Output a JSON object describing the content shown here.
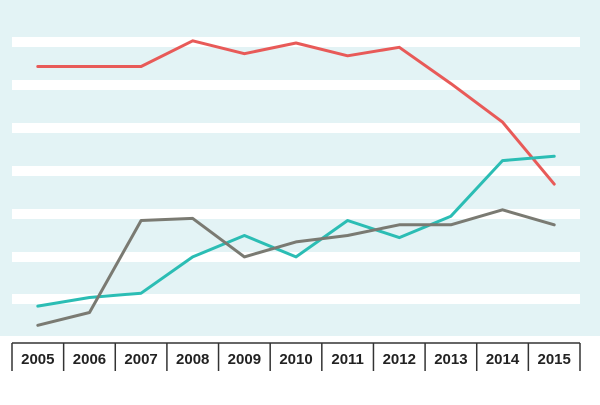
{
  "chart_data": {
    "type": "line",
    "title": "",
    "xlabel": "",
    "ylabel": "",
    "x": [
      "2005",
      "2006",
      "2007",
      "2008",
      "2009",
      "2010",
      "2011",
      "2012",
      "2013",
      "2014",
      "2015"
    ],
    "ylim": [
      0,
      7.2
    ],
    "grid": true,
    "legend": "none",
    "series": [
      {
        "color": "#e85a58",
        "values": [
          6.3,
          6.3,
          6.3,
          6.9,
          6.6,
          6.85,
          6.55,
          6.75,
          5.9,
          5.0,
          3.55
        ]
      },
      {
        "color": "#2bbdb4",
        "values": [
          0.7,
          0.9,
          1.0,
          1.85,
          2.35,
          1.85,
          2.7,
          2.3,
          2.8,
          4.1,
          4.2
        ]
      },
      {
        "color": "#7a7a72",
        "values": [
          0.25,
          0.55,
          2.7,
          2.75,
          1.85,
          2.2,
          2.35,
          2.6,
          2.6,
          2.95,
          2.6
        ]
      }
    ]
  }
}
